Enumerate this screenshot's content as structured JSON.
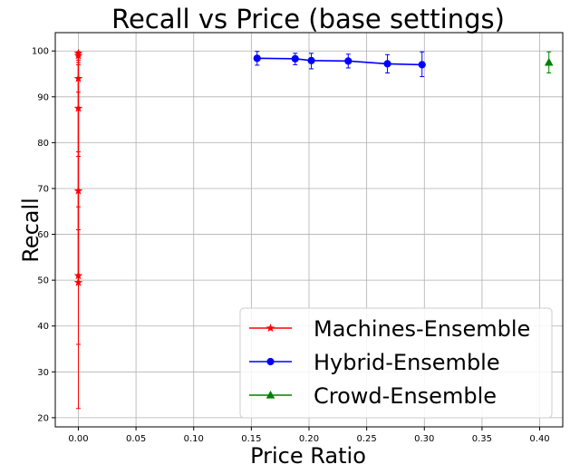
{
  "chart_data": {
    "type": "line",
    "title": "Recall vs Price (base settings)",
    "xlabel": "Price Ratio",
    "ylabel": "Recall",
    "xlim": [
      -0.02,
      0.42
    ],
    "ylim": [
      18,
      104
    ],
    "xticks": [
      0.0,
      0.05,
      0.1,
      0.15,
      0.2,
      0.25,
      0.3,
      0.35,
      0.4
    ],
    "xtick_labels": [
      "0.00",
      "0.05",
      "0.10",
      "0.15",
      "0.20",
      "0.25",
      "0.30",
      "0.35",
      "0.40"
    ],
    "yticks": [
      20,
      30,
      40,
      50,
      60,
      70,
      80,
      90,
      100
    ],
    "ytick_labels": [
      "20",
      "30",
      "40",
      "50",
      "60",
      "70",
      "80",
      "90",
      "100"
    ],
    "grid": true,
    "legend_position": "bottom-right",
    "series": [
      {
        "name": "Machines-Ensemble",
        "color": "#ff0000",
        "marker": "star",
        "x": [
          0.0,
          0.0,
          0.0,
          0.0,
          0.0,
          0.0,
          0.0
        ],
        "y": [
          49.5,
          51.0,
          69.5,
          87.5,
          94.0,
          99.0,
          99.5
        ],
        "err_low": [
          27.5,
          15.0,
          8.5,
          10.5,
          3.0,
          1.5,
          0.5
        ],
        "err_high": [
          27.5,
          15.0,
          8.5,
          10.5,
          3.0,
          0.5,
          0.3
        ]
      },
      {
        "name": "Hybrid-Ensemble",
        "color": "#0000ff",
        "marker": "circle",
        "x": [
          0.155,
          0.188,
          0.202,
          0.234,
          0.268,
          0.298
        ],
        "y": [
          98.4,
          98.3,
          97.9,
          97.8,
          97.2,
          97.0
        ],
        "err_low": [
          1.5,
          1.3,
          1.8,
          1.5,
          2.0,
          2.6
        ],
        "err_high": [
          1.5,
          1.2,
          1.6,
          1.5,
          2.0,
          2.8
        ]
      },
      {
        "name": "Crowd-Ensemble",
        "color": "#008000",
        "marker": "triangle",
        "x": [
          0.408
        ],
        "y": [
          97.5
        ],
        "err_low": [
          2.3
        ],
        "err_high": [
          2.3
        ]
      }
    ]
  }
}
